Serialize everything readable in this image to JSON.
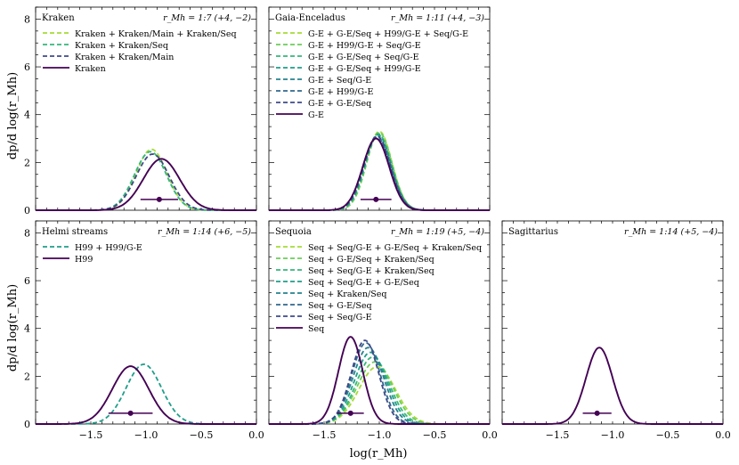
{
  "figure": {
    "ylabel": "dp/d log(r_Mh)",
    "xlabel": "log(r_Mh)"
  },
  "chart_data": [
    {
      "type": "line",
      "title": "Kraken",
      "ratio_label": "r_Mh = 1:7 (+4, −2)",
      "xlim": [
        -2.0,
        0.0
      ],
      "ylim": [
        0,
        8.5
      ],
      "xticks": [
        "−1.5",
        "−1.0",
        "−0.5",
        "0.0"
      ],
      "yticks": [
        "0",
        "2",
        "4",
        "6",
        "8"
      ],
      "series": [
        {
          "name": "Kraken + Kraken/Main + Kraken/Seq",
          "color": "#a5db36",
          "dash": true,
          "peak_x": -0.95,
          "peak_y": 2.55,
          "sigma": 0.14
        },
        {
          "name": "Kraken + Kraken/Seq",
          "color": "#35b779",
          "dash": true,
          "peak_x": -0.96,
          "peak_y": 2.45,
          "sigma": 0.145
        },
        {
          "name": "Kraken + Kraken/Main",
          "color": "#3e4a89",
          "dash": true,
          "peak_x": -0.94,
          "peak_y": 2.35,
          "sigma": 0.15
        },
        {
          "name": "Kraken",
          "color": "#440154",
          "dash": false,
          "peak_x": -0.86,
          "peak_y": 2.15,
          "sigma": 0.165
        }
      ],
      "point": {
        "x": -0.88,
        "xerr_low": 0.17,
        "xerr_high": 0.17,
        "y": 0.45
      }
    },
    {
      "type": "line",
      "title": "Gaia-Enceladus",
      "ratio_label": "r_Mh = 1:11 (+4, −3)",
      "xlim": [
        -2.0,
        0.0
      ],
      "ylim": [
        0,
        8.5
      ],
      "xticks": [
        "−1.5",
        "−1.0",
        "−0.5",
        "0.0"
      ],
      "yticks": [
        "0",
        "2",
        "4",
        "6",
        "8"
      ],
      "series": [
        {
          "name": "G-E + G-E/Seq + H99/G-E + Seq/G-E",
          "color": "#a5db36",
          "dash": true,
          "peak_x": -1.0,
          "peak_y": 3.3,
          "sigma": 0.115
        },
        {
          "name": "G-E + H99/G-E + Seq/G-E",
          "color": "#6ccd5a",
          "dash": true,
          "peak_x": -1.0,
          "peak_y": 3.25,
          "sigma": 0.115
        },
        {
          "name": "G-E + G-E/Seq + Seq/G-E",
          "color": "#35b779",
          "dash": true,
          "peak_x": -1.01,
          "peak_y": 3.2,
          "sigma": 0.118
        },
        {
          "name": "G-E + G-E/Seq + H99/G-E",
          "color": "#1f9e89",
          "dash": true,
          "peak_x": -1.01,
          "peak_y": 3.15,
          "sigma": 0.118
        },
        {
          "name": "G-E + Seq/G-E",
          "color": "#26828e",
          "dash": true,
          "peak_x": -1.02,
          "peak_y": 3.1,
          "sigma": 0.12
        },
        {
          "name": "G-E + H99/G-E",
          "color": "#31688e",
          "dash": true,
          "peak_x": -1.02,
          "peak_y": 3.05,
          "sigma": 0.12
        },
        {
          "name": "G-E + G-E/Seq",
          "color": "#3e4a89",
          "dash": true,
          "peak_x": -1.02,
          "peak_y": 3.1,
          "sigma": 0.12
        },
        {
          "name": "G-E",
          "color": "#440154",
          "dash": false,
          "peak_x": -1.03,
          "peak_y": 3.0,
          "sigma": 0.12
        }
      ],
      "point": {
        "x": -1.03,
        "xerr_low": 0.14,
        "xerr_high": 0.14,
        "y": 0.45
      }
    },
    {
      "type": "line",
      "title": "Helmi streams",
      "ratio_label": "r_Mh = 1:14 (+6, −5)",
      "xlim": [
        -2.0,
        0.0
      ],
      "ylim": [
        0,
        8.5
      ],
      "xticks": [
        "−1.5",
        "−1.0",
        "−0.5",
        "0.0"
      ],
      "yticks": [
        "0",
        "2",
        "4",
        "6",
        "8"
      ],
      "series": [
        {
          "name": "H99 + H99/G-E",
          "color": "#1f9e89",
          "dash": true,
          "peak_x": -1.02,
          "peak_y": 2.5,
          "sigma": 0.16
        },
        {
          "name": "H99",
          "color": "#440154",
          "dash": false,
          "peak_x": -1.14,
          "peak_y": 2.42,
          "sigma": 0.165
        }
      ],
      "point": {
        "x": -1.14,
        "xerr_low": 0.2,
        "xerr_high": 0.2,
        "y": 0.45
      }
    },
    {
      "type": "line",
      "title": "Sequoia",
      "ratio_label": "r_Mh = 1:19 (+5, −4)",
      "xlim": [
        -2.0,
        0.0
      ],
      "ylim": [
        0,
        8.5
      ],
      "xticks": [
        "−1.5",
        "−1.0",
        "−0.5",
        "0.0"
      ],
      "yticks": [
        "0",
        "2",
        "4",
        "6",
        "8"
      ],
      "series": [
        {
          "name": "Seq + Seq/G-E + G-E/Seq + Kraken/Seq",
          "color": "#a5db36",
          "dash": true,
          "peak_x": -1.02,
          "peak_y": 2.4,
          "sigma": 0.165
        },
        {
          "name": "Seq + G-E/Seq + Kraken/Seq",
          "color": "#6ccd5a",
          "dash": true,
          "peak_x": -1.04,
          "peak_y": 2.6,
          "sigma": 0.16
        },
        {
          "name": "Seq + Seq/G-E + Kraken/Seq",
          "color": "#35b779",
          "dash": true,
          "peak_x": -1.06,
          "peak_y": 2.8,
          "sigma": 0.15
        },
        {
          "name": "Seq + Seq/G-E + G-E/Seq",
          "color": "#1f9e89",
          "dash": true,
          "peak_x": -1.08,
          "peak_y": 3.0,
          "sigma": 0.145
        },
        {
          "name": "Seq + Kraken/Seq",
          "color": "#26828e",
          "dash": true,
          "peak_x": -1.1,
          "peak_y": 3.2,
          "sigma": 0.14
        },
        {
          "name": "Seq + G-E/Seq",
          "color": "#31688e",
          "dash": true,
          "peak_x": -1.12,
          "peak_y": 3.4,
          "sigma": 0.13
        },
        {
          "name": "Seq + Seq/G-E",
          "color": "#3e4a89",
          "dash": true,
          "peak_x": -1.13,
          "peak_y": 3.5,
          "sigma": 0.125
        },
        {
          "name": "Seq",
          "color": "#440154",
          "dash": false,
          "peak_x": -1.26,
          "peak_y": 3.65,
          "sigma": 0.11
        }
      ],
      "point": {
        "x": -1.26,
        "xerr_low": 0.12,
        "xerr_high": 0.12,
        "y": 0.45
      }
    },
    {
      "type": "line",
      "title": "Sagittarius",
      "ratio_label": "r_Mh = 1:14 (+5, −4)",
      "xlim": [
        -2.0,
        0.0
      ],
      "ylim": [
        0,
        8.5
      ],
      "xticks": [
        "−1.5",
        "−1.0",
        "−0.5",
        "0.0"
      ],
      "yticks": [
        "0",
        "2",
        "4",
        "6",
        "8"
      ],
      "series": [
        {
          "name": "Sagittarius",
          "color": "#440154",
          "dash": false,
          "peak_x": -1.12,
          "peak_y": 3.2,
          "sigma": 0.12
        }
      ],
      "point": {
        "x": -1.14,
        "xerr_low": 0.13,
        "xerr_high": 0.13,
        "y": 0.45
      }
    }
  ]
}
